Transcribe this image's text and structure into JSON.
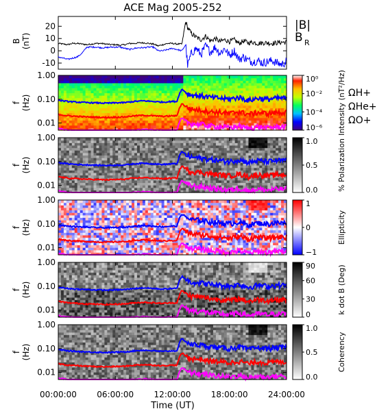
{
  "chart_data": {
    "title": "ACE Mag 2005-252",
    "xlabel": "Time (UT)",
    "x_ticks": [
      "00:00:00",
      "06:00:00",
      "12:00:00",
      "18:00:00",
      "24:00:00"
    ],
    "x_range_hours": [
      0,
      24
    ],
    "line_panel": {
      "type": "line",
      "ylabel": "B (nT)",
      "ylim": [
        -15,
        28
      ],
      "y_ticks": [
        -10,
        0,
        10,
        20
      ],
      "series": [
        {
          "name": "|B|",
          "color": "#000000",
          "t": [
            0,
            0.5,
            1,
            1.5,
            2,
            2.5,
            3,
            3.5,
            4,
            4.5,
            5,
            5.5,
            6,
            6.5,
            7,
            7.5,
            8,
            8.5,
            9,
            9.5,
            10,
            10.5,
            11,
            11.5,
            12,
            12.5,
            13,
            13.4,
            13.6,
            14,
            14.5,
            15,
            15.5,
            16,
            16.5,
            17,
            17.5,
            18,
            18.5,
            19,
            19.5,
            20,
            20.5,
            21,
            21.5,
            22,
            22.5,
            23,
            23.5,
            24
          ],
          "values": [
            6,
            5.5,
            5,
            6,
            6,
            5.5,
            5,
            5.5,
            6,
            6,
            5.5,
            5,
            5,
            4.5,
            5,
            6,
            6,
            6.5,
            6.5,
            6,
            5.5,
            4,
            5,
            6,
            6,
            5.5,
            5.5,
            24,
            19,
            14,
            11,
            9,
            12,
            8,
            10,
            7.5,
            9,
            7.5,
            9,
            6,
            8,
            6.5,
            7,
            6,
            6.5,
            6.5,
            6,
            6.5,
            7,
            7
          ]
        },
        {
          "name": "B_R",
          "color": "#0000ff",
          "t": [
            0,
            0.5,
            1,
            1.5,
            2,
            2.5,
            3,
            3.5,
            4,
            4.5,
            5,
            5.5,
            6,
            6.5,
            7,
            7.5,
            8,
            8.5,
            9,
            9.5,
            10,
            10.5,
            11,
            11.5,
            12,
            12.5,
            13,
            13.4,
            13.6,
            14,
            14.5,
            15,
            15.5,
            16,
            16.5,
            17,
            17.5,
            18,
            18.5,
            19,
            19.5,
            20,
            20.5,
            21,
            21.5,
            22,
            22.5,
            23,
            23.5,
            24
          ],
          "values": [
            -5,
            -6,
            -7,
            -6,
            -5,
            -2,
            3,
            3,
            3,
            2.5,
            2.5,
            3,
            3,
            3,
            2,
            1,
            2,
            2.5,
            2.5,
            3,
            3,
            0,
            0,
            1,
            2,
            1,
            0,
            5,
            -12,
            -2,
            2,
            -3,
            4,
            -1,
            3,
            -2,
            2,
            -4,
            0,
            -7,
            -5,
            -8,
            -9,
            -8,
            -10,
            -9,
            -8,
            -10,
            -11,
            -9
          ]
        }
      ],
      "legend": [
        "|B|",
        "B_R"
      ]
    },
    "frequency_axis": {
      "ylabel": "f (Hz)",
      "scale": "log",
      "ylim": [
        0.005,
        1.0
      ],
      "y_ticks": [
        "1.00",
        "0.10",
        "0.01"
      ],
      "y_tick_values": [
        1.0,
        0.1,
        0.01
      ]
    },
    "gyrofrequency_lines": {
      "t": [
        0,
        1,
        2,
        3,
        4,
        5,
        6,
        7,
        8,
        9,
        10,
        11,
        12,
        12.5,
        13,
        13.5,
        14,
        15,
        16,
        17,
        18,
        19,
        20,
        21,
        22,
        23,
        24
      ],
      "series": [
        {
          "name": "Ω H+",
          "color": "#0000ff",
          "values": [
            0.09,
            0.08,
            0.075,
            0.072,
            0.07,
            0.068,
            0.07,
            0.072,
            0.08,
            0.085,
            0.08,
            0.075,
            0.08,
            0.08,
            0.26,
            0.18,
            0.15,
            0.14,
            0.12,
            0.11,
            0.1,
            0.12,
            0.09,
            0.11,
            0.1,
            0.11,
            0.11
          ]
        },
        {
          "name": "Ω He+",
          "color": "#ff0000",
          "values": [
            0.023,
            0.02,
            0.019,
            0.018,
            0.0175,
            0.017,
            0.0175,
            0.018,
            0.02,
            0.021,
            0.02,
            0.019,
            0.02,
            0.02,
            0.065,
            0.045,
            0.038,
            0.035,
            0.03,
            0.028,
            0.025,
            0.03,
            0.023,
            0.028,
            0.025,
            0.028,
            0.028
          ]
        },
        {
          "name": "Ω O+",
          "color": "#ff00ff",
          "values": [
            0.0058,
            0.005,
            0.0048,
            0.0046,
            0.0044,
            0.0043,
            0.0044,
            0.0045,
            0.005,
            0.0053,
            0.005,
            0.0048,
            0.005,
            0.005,
            0.016,
            0.011,
            0.0095,
            0.0088,
            0.0076,
            0.007,
            0.0063,
            0.0075,
            0.0058,
            0.007,
            0.0063,
            0.007,
            0.007
          ]
        }
      ]
    },
    "spectrogram_panels": [
      {
        "type": "heatmap",
        "colorbar_label": "Intensity (nT²/Hz)",
        "colormap": "rainbow",
        "colorbar_ticks": [
          "10⁰",
          "10⁻²",
          "10⁻⁴",
          "10⁻⁶"
        ],
        "colorbar_range": [
          -6.5,
          0.5
        ],
        "show_gyro_legend": true
      },
      {
        "type": "heatmap",
        "colorbar_label": "% Polarization",
        "colormap": "gray",
        "colorbar_ticks": [
          "1.0",
          "0.5",
          "0.0"
        ],
        "colorbar_range": [
          0,
          1
        ]
      },
      {
        "type": "heatmap",
        "colorbar_label": "Ellipticity",
        "colormap": "bluewhitered",
        "colorbar_ticks": [
          "1",
          "0",
          "−1"
        ],
        "colorbar_range": [
          -1,
          1
        ]
      },
      {
        "type": "heatmap",
        "colorbar_label": "k dot B (Deg)",
        "colormap": "gray",
        "colorbar_ticks": [
          "90",
          "60",
          "30",
          "0"
        ],
        "colorbar_range": [
          0,
          90
        ]
      },
      {
        "type": "heatmap",
        "colorbar_label": "Coherency",
        "colormap": "gray",
        "colorbar_ticks": [
          "1.0",
          "0.5",
          "0.0"
        ],
        "colorbar_range": [
          0,
          1
        ]
      }
    ],
    "legend_labels": {
      "H": "ΩH+",
      "He": "ΩHe+",
      "O": "ΩO+"
    },
    "legend_colors": {
      "B": "#000000",
      "BR": "#0000ff",
      "H": "#0000ff",
      "He": "#ff0000",
      "O": "#ff00ff"
    }
  }
}
